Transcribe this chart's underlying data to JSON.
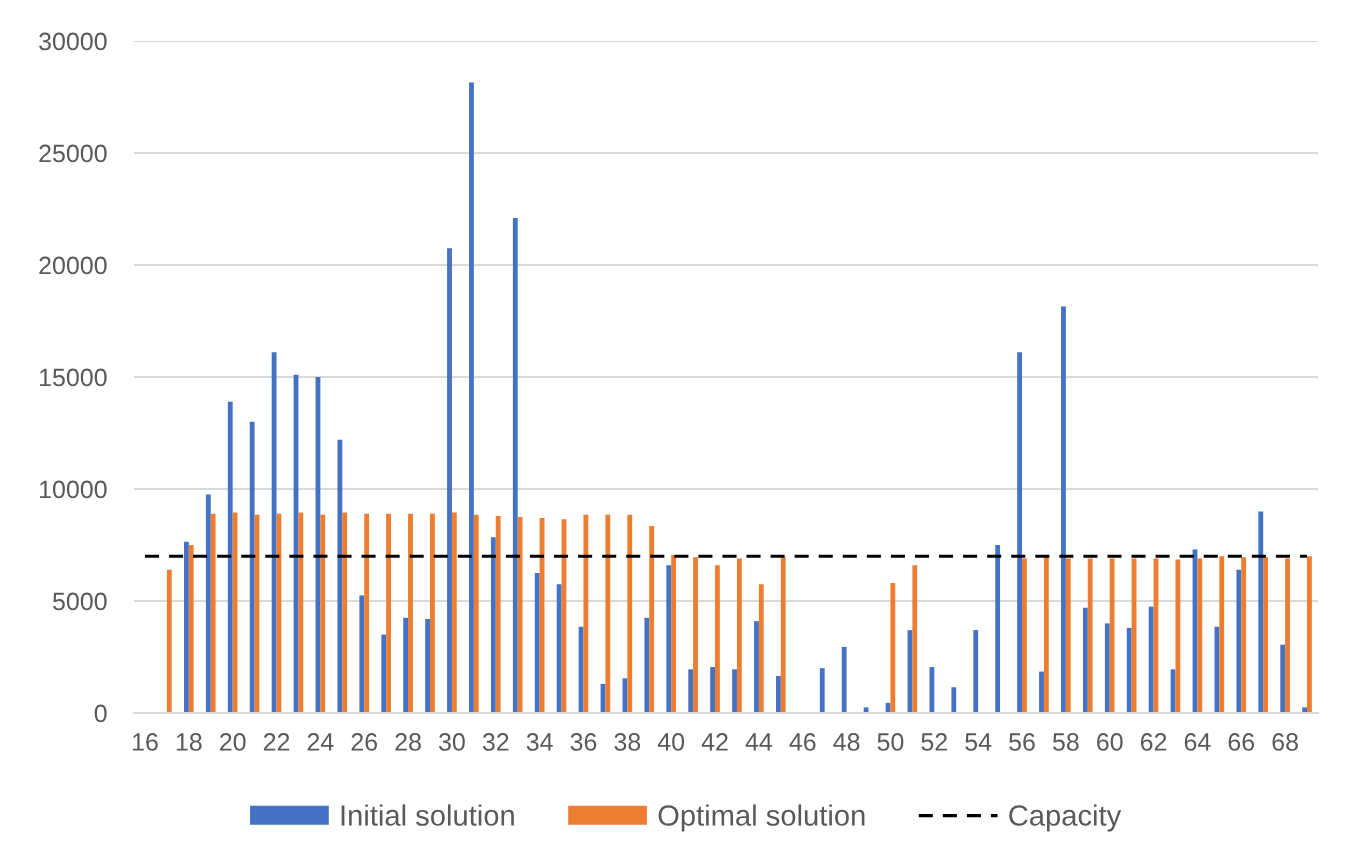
{
  "chart_data": {
    "type": "bar",
    "categories": [
      "16",
      null,
      "18",
      null,
      "20",
      null,
      "22",
      null,
      "24",
      null,
      "26",
      null,
      "28",
      null,
      "30",
      null,
      "32",
      null,
      "34",
      null,
      "36",
      null,
      "38",
      null,
      "40",
      null,
      "42",
      null,
      "44",
      null,
      "46",
      null,
      "48",
      null,
      "50",
      null,
      "52",
      null,
      "54",
      null,
      "56",
      null,
      "58",
      null,
      "60",
      null,
      "62",
      null,
      "64",
      null,
      "66",
      null,
      "68",
      null
    ],
    "series": [
      {
        "name": "Initial solution",
        "color": "#4472c4",
        "values": [
          null,
          null,
          7650,
          9750,
          13900,
          13000,
          16100,
          15100,
          15000,
          12200,
          5250,
          3500,
          4250,
          4200,
          20750,
          28150,
          7850,
          22100,
          6250,
          5750,
          3850,
          1300,
          1550,
          4250,
          6600,
          1950,
          2050,
          1950,
          4100,
          1650,
          null,
          2000,
          2950,
          250,
          450,
          3700,
          2050,
          1150,
          3700,
          7500,
          16100,
          1850,
          18150,
          4700,
          4000,
          3800,
          4750,
          1950,
          7300,
          3850,
          6400,
          9000,
          3050,
          250
        ]
      },
      {
        "name": "Optimal solution",
        "color": "#ed7d31",
        "values": [
          null,
          6400,
          7500,
          8900,
          8950,
          8850,
          8900,
          8950,
          8850,
          8950,
          8900,
          8900,
          8900,
          8900,
          8950,
          8850,
          8800,
          8750,
          8700,
          8650,
          8850,
          8850,
          8850,
          8350,
          7050,
          6950,
          6600,
          6900,
          5750,
          6950,
          null,
          null,
          null,
          null,
          5800,
          6600,
          null,
          null,
          null,
          null,
          6900,
          7000,
          6900,
          6900,
          6900,
          6900,
          6900,
          6850,
          6900,
          7000,
          6950,
          6950,
          6900,
          7000
        ]
      }
    ],
    "ylim": [
      0,
      30000
    ],
    "yticks": [
      0,
      5000,
      10000,
      15000,
      20000,
      25000,
      30000
    ],
    "grid": "y",
    "legend": "bottom",
    "ref_lines": [
      {
        "axis": "y",
        "value": 7000,
        "label": "Capacity",
        "color": "#000000",
        "line_style": "dashed"
      }
    ]
  }
}
